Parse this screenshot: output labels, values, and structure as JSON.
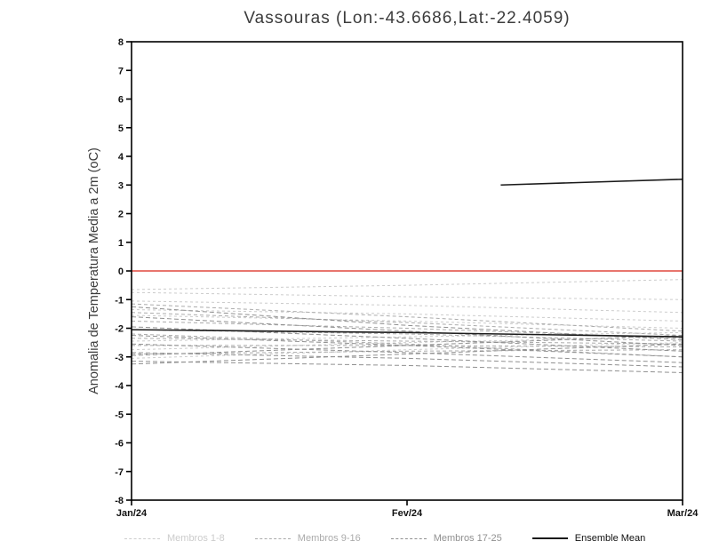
{
  "chart_data": {
    "type": "line",
    "title": "Vassouras (Lon:-43.6686,Lat:-22.4059)",
    "ylabel": "Anomalia de Temperatura Media a 2m (oC)",
    "xlabel": "",
    "x_tick_labels": [
      "Jan/24",
      "Fev/24",
      "Mar/24"
    ],
    "ylim": [
      -8,
      8
    ],
    "y_ticks": [
      8,
      7,
      6,
      5,
      4,
      3,
      2,
      1,
      0,
      -1,
      -2,
      -3,
      -4,
      -5,
      -6,
      -7,
      -8
    ],
    "grid": false,
    "legend_position": "bottom",
    "zero_line_color": "#e0483e",
    "frame_color": "#000000",
    "groups": [
      {
        "label": "Membros 1-8",
        "color": "#cccccc",
        "dash": "3 3",
        "width": 1,
        "series": [
          {
            "name": "membro-1",
            "values": [
              -0.65,
              -0.5,
              -0.3
            ]
          },
          {
            "name": "membro-2",
            "values": [
              -0.75,
              -0.9,
              -1.0
            ]
          },
          {
            "name": "membro-3",
            "values": [
              -1.05,
              -1.2,
              -1.45
            ]
          },
          {
            "name": "membro-4",
            "values": [
              -1.35,
              -1.5,
              -1.75
            ]
          },
          {
            "name": "membro-5",
            "values": [
              -1.55,
              -1.75,
              -2.0
            ]
          },
          {
            "name": "membro-6",
            "values": [
              -2.45,
              -2.3,
              -2.15
            ]
          },
          {
            "name": "membro-7",
            "values": [
              -2.75,
              -2.5,
              -2.3
            ]
          },
          {
            "name": "membro-8",
            "values": [
              -3.05,
              -2.75,
              -2.5
            ]
          }
        ]
      },
      {
        "label": "Membros 9-16",
        "color": "#ababab",
        "dash": "4 3",
        "width": 1,
        "series": [
          {
            "name": "membro-9",
            "values": [
              -1.15,
              -1.6,
              -2.1
            ]
          },
          {
            "name": "membro-10",
            "values": [
              -1.45,
              -1.8,
              -2.25
            ]
          },
          {
            "name": "membro-11",
            "values": [
              -1.75,
              -2.0,
              -2.35
            ]
          },
          {
            "name": "membro-12",
            "values": [
              -2.05,
              -2.2,
              -2.45
            ]
          },
          {
            "name": "membro-13",
            "values": [
              -2.35,
              -2.45,
              -2.55
            ]
          },
          {
            "name": "membro-14",
            "values": [
              -2.6,
              -2.6,
              -2.65
            ]
          },
          {
            "name": "membro-15",
            "values": [
              -2.9,
              -2.8,
              -2.75
            ]
          },
          {
            "name": "membro-16",
            "values": [
              -2.2,
              -2.55,
              -3.0
            ]
          }
        ]
      },
      {
        "label": "Membros 17-25",
        "color": "#909090",
        "dash": "5 3",
        "width": 1,
        "series": [
          {
            "name": "membro-17",
            "values": [
              -1.25,
              -1.9,
              -2.4
            ]
          },
          {
            "name": "membro-18",
            "values": [
              -1.6,
              -2.1,
              -2.6
            ]
          },
          {
            "name": "membro-19",
            "values": [
              -1.95,
              -2.35,
              -2.8
            ]
          },
          {
            "name": "membro-20",
            "values": [
              -2.25,
              -2.6,
              -3.0
            ]
          },
          {
            "name": "membro-21",
            "values": [
              -2.55,
              -2.85,
              -3.2
            ]
          },
          {
            "name": "membro-22",
            "values": [
              -2.85,
              -3.05,
              -3.35
            ]
          },
          {
            "name": "membro-23",
            "values": [
              -3.15,
              -3.3,
              -3.55
            ]
          },
          {
            "name": "membro-24",
            "values": [
              -2.95,
              -2.6,
              -2.25
            ]
          },
          {
            "name": "membro-25",
            "values": [
              -3.25,
              -2.9,
              -2.55
            ]
          }
        ]
      },
      {
        "label": "Ensemble Mean",
        "color": "#1a1a1a",
        "label_color": "#111111",
        "dash": null,
        "width": 1.6,
        "series": [
          {
            "name": "ensemble-mean",
            "values": [
              -2.05,
              -2.15,
              -2.3
            ]
          },
          {
            "name": "upper-segment",
            "x_frac": [
              0.67,
              1.0
            ],
            "values": [
              3.0,
              3.2
            ]
          }
        ]
      }
    ]
  }
}
